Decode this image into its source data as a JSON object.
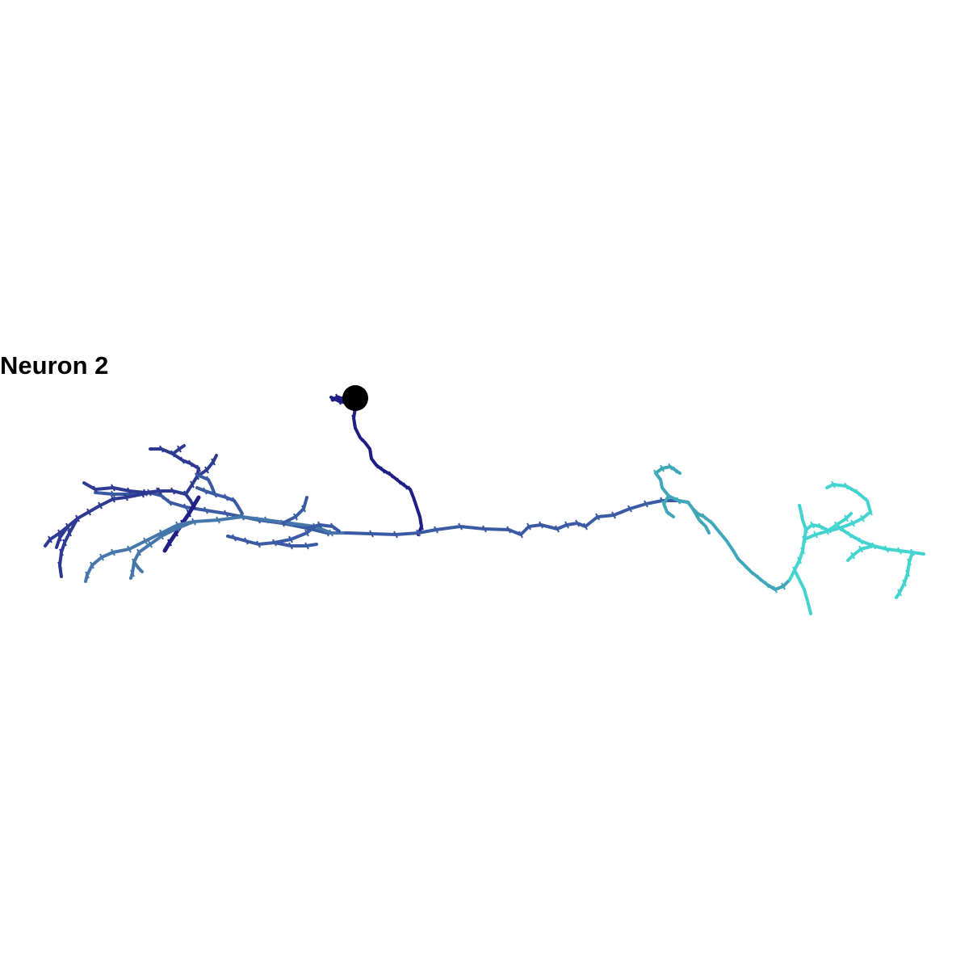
{
  "title": "Neuron 2",
  "colors": {
    "soma": "#000000",
    "dark": "#1f1f85",
    "indigo": "#2e3a92",
    "blue": "#3a5aa3",
    "steel": "#4577ab",
    "teal": "#3fa7b8",
    "cyan": "#43d4cf"
  }
}
